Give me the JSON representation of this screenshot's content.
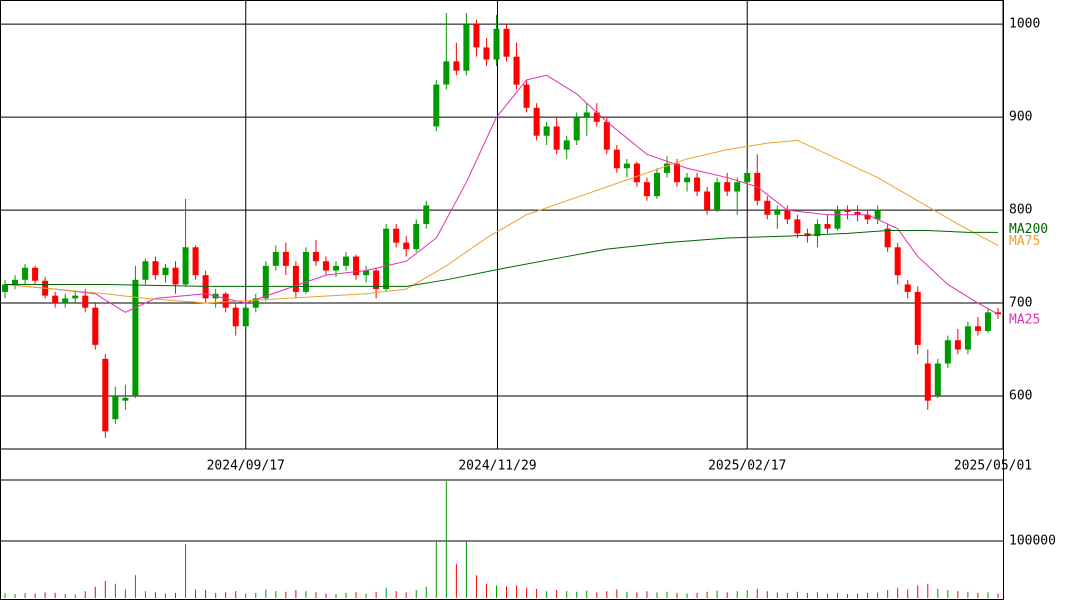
{
  "chart_data": [
    {
      "type": "candlestick",
      "up_color": "#009900",
      "down_color": "#ff0000",
      "open": [
        712,
        720,
        725,
        738,
        724,
        708,
        700,
        705,
        708,
        695,
        640,
        575,
        595,
        600,
        725,
        745,
        730,
        738,
        720,
        760,
        730,
        705,
        710,
        695,
        675,
        695,
        705,
        740,
        755,
        740,
        712,
        755,
        745,
        735,
        740,
        750,
        730,
        735,
        715,
        780,
        765,
        758,
        785,
        890,
        935,
        960,
        950,
        1000,
        975,
        962,
        995,
        965,
        935,
        910,
        880,
        890,
        865,
        875,
        900,
        905,
        895,
        865,
        845,
        850,
        830,
        815,
        840,
        850,
        830,
        835,
        820,
        800,
        830,
        820,
        830,
        840,
        810,
        795,
        800,
        790,
        775,
        772,
        785,
        780,
        800,
        798,
        795,
        790,
        780,
        760,
        720,
        712,
        635,
        600,
        635,
        660,
        650,
        675,
        670,
        690
      ],
      "high": [
        725,
        730,
        742,
        740,
        728,
        712,
        710,
        712,
        715,
        700,
        645,
        610,
        612,
        740,
        748,
        750,
        742,
        745,
        812,
        762,
        735,
        715,
        712,
        700,
        700,
        710,
        745,
        762,
        765,
        745,
        760,
        768,
        750,
        745,
        755,
        752,
        740,
        738,
        785,
        785,
        772,
        790,
        810,
        940,
        1012,
        980,
        1012,
        1005,
        985,
        1010,
        1000,
        980,
        940,
        915,
        895,
        900,
        880,
        905,
        915,
        915,
        900,
        870,
        855,
        852,
        835,
        845,
        858,
        855,
        840,
        840,
        825,
        835,
        840,
        835,
        845,
        860,
        815,
        805,
        805,
        795,
        780,
        790,
        795,
        805,
        805,
        805,
        800,
        805,
        785,
        765,
        725,
        718,
        650,
        640,
        665,
        672,
        680,
        685,
        695,
        695
      ],
      "low": [
        705,
        715,
        720,
        720,
        705,
        695,
        695,
        700,
        690,
        650,
        555,
        570,
        585,
        598,
        720,
        725,
        722,
        710,
        718,
        725,
        700,
        695,
        690,
        665,
        672,
        690,
        702,
        735,
        730,
        705,
        710,
        740,
        730,
        728,
        735,
        725,
        722,
        705,
        712,
        760,
        750,
        755,
        780,
        885,
        930,
        945,
        945,
        965,
        955,
        955,
        960,
        930,
        905,
        875,
        870,
        860,
        855,
        870,
        880,
        890,
        860,
        840,
        835,
        825,
        810,
        812,
        835,
        825,
        820,
        815,
        795,
        798,
        815,
        795,
        825,
        805,
        790,
        780,
        785,
        770,
        765,
        760,
        775,
        778,
        790,
        788,
        785,
        785,
        755,
        720,
        705,
        645,
        585,
        598,
        630,
        645,
        645,
        665,
        668,
        683
      ],
      "close": [
        720,
        725,
        738,
        724,
        708,
        700,
        705,
        708,
        695,
        655,
        562,
        600,
        598,
        725,
        745,
        730,
        738,
        720,
        760,
        730,
        705,
        710,
        695,
        675,
        695,
        705,
        740,
        755,
        740,
        712,
        755,
        745,
        735,
        740,
        750,
        730,
        735,
        715,
        780,
        765,
        758,
        785,
        805,
        935,
        960,
        950,
        1000,
        975,
        962,
        995,
        965,
        935,
        910,
        880,
        890,
        865,
        875,
        900,
        905,
        895,
        865,
        845,
        850,
        830,
        815,
        840,
        850,
        830,
        835,
        820,
        800,
        830,
        820,
        830,
        840,
        810,
        795,
        800,
        790,
        775,
        772,
        785,
        780,
        800,
        798,
        795,
        790,
        800,
        760,
        730,
        712,
        655,
        595,
        635,
        660,
        650,
        675,
        670,
        690,
        688
      ],
      "xlim": [
        0,
        100
      ],
      "xticks": [
        {
          "value": 24.5,
          "label": "2024/09/17"
        },
        {
          "value": 49.6,
          "label": "2024/11/29"
        },
        {
          "value": 74.5,
          "label": "2025/02/17"
        },
        {
          "value": 100,
          "label": "2025/05/01"
        }
      ],
      "ylim": [
        543,
        1026
      ],
      "yticks": [
        600,
        700,
        800,
        900,
        1000
      ],
      "grid": true,
      "series": [
        {
          "name": "MA25",
          "color": "#e030b0",
          "x": [
            0,
            5,
            9,
            12,
            15,
            20,
            24,
            28,
            32,
            36,
            40,
            43,
            46,
            49,
            52,
            54,
            57,
            60,
            64,
            68,
            72,
            75,
            78,
            82,
            86,
            89,
            91,
            94,
            97,
            99
          ],
          "values": [
            720,
            715,
            710,
            690,
            705,
            710,
            700,
            715,
            730,
            735,
            745,
            770,
            830,
            900,
            940,
            945,
            925,
            895,
            860,
            845,
            835,
            825,
            800,
            795,
            795,
            780,
            750,
            720,
            700,
            688
          ]
        },
        {
          "name": "MA75",
          "color": "#f0a030",
          "x": [
            0,
            10,
            14,
            20,
            28,
            36,
            40,
            44,
            48,
            52,
            56,
            60,
            64,
            68,
            72,
            76,
            79,
            83,
            87,
            91,
            95,
            99
          ],
          "values": [
            720,
            710,
            705,
            700,
            705,
            710,
            715,
            740,
            770,
            795,
            810,
            825,
            840,
            855,
            865,
            872,
            875,
            855,
            835,
            810,
            785,
            762
          ]
        },
        {
          "name": "MA200",
          "color": "#006400",
          "x": [
            0,
            10,
            20,
            30,
            40,
            44,
            50,
            55,
            60,
            66,
            72,
            78,
            84,
            88,
            92,
            96,
            99
          ],
          "values": [
            720,
            720,
            718,
            718,
            718,
            725,
            738,
            748,
            758,
            765,
            770,
            772,
            775,
            778,
            778,
            776,
            776
          ]
        }
      ]
    },
    {
      "type": "bar",
      "values": [
        8000,
        7000,
        9000,
        8000,
        10000,
        9000,
        7000,
        6000,
        12000,
        20000,
        30000,
        25000,
        15000,
        40000,
        12000,
        10000,
        8000,
        9000,
        95000,
        15000,
        14000,
        9000,
        10000,
        12000,
        8000,
        9000,
        15000,
        12000,
        11000,
        14000,
        12000,
        10000,
        8000,
        7000,
        9000,
        10000,
        8000,
        11000,
        18000,
        12000,
        10000,
        14000,
        20000,
        100000,
        205000,
        60000,
        100000,
        40000,
        25000,
        22000,
        20000,
        22000,
        18000,
        16000,
        12000,
        14000,
        12000,
        11000,
        13000,
        10000,
        12000,
        15000,
        11000,
        10000,
        12000,
        10000,
        11000,
        9000,
        8000,
        9000,
        11000,
        13000,
        10000,
        12000,
        14000,
        16000,
        12000,
        10000,
        9000,
        11000,
        9000,
        10000,
        8000,
        9000,
        7000,
        8000,
        9000,
        10000,
        14000,
        18000,
        15000,
        22000,
        25000,
        16000,
        14000,
        12000,
        11000,
        9000,
        10000,
        8000
      ],
      "ylim": [
        0,
        207000
      ],
      "yticks": [
        100000
      ],
      "grid": true
    }
  ]
}
